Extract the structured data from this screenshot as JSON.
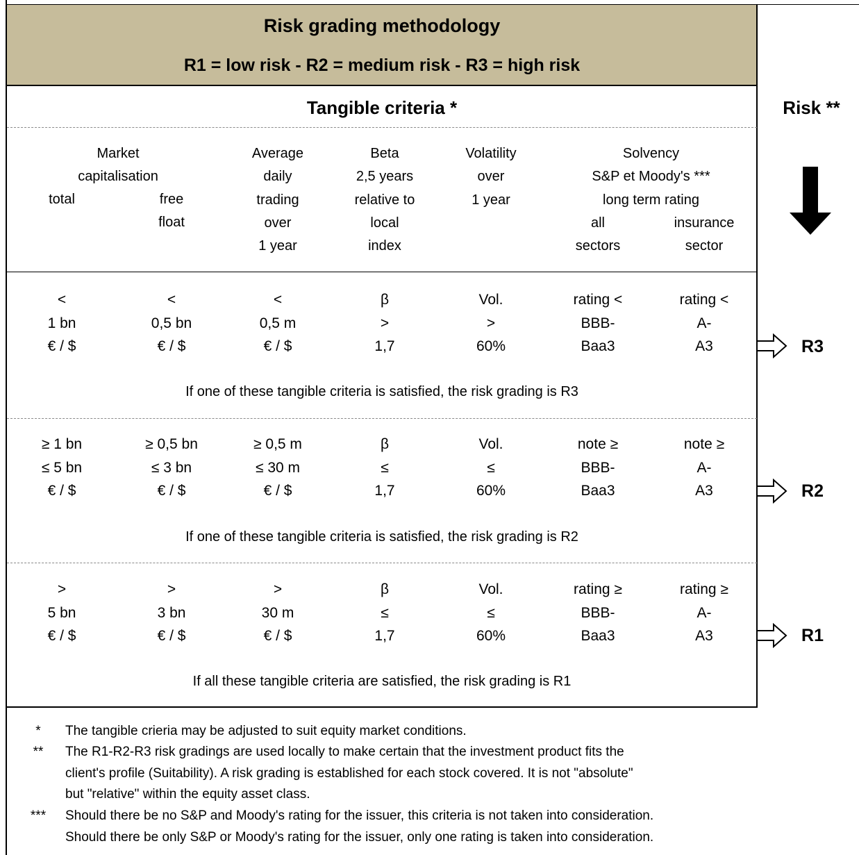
{
  "header": {
    "title": "Risk grading methodology",
    "subtitle": "R1 = low risk - R2 = medium risk - R3 = high risk"
  },
  "tangible_title": "Tangible criteria *",
  "risk_title": "Risk **",
  "columns": {
    "market_cap_group": [
      "Market",
      "capitalisation"
    ],
    "total": "total",
    "free_float": [
      "free",
      "float"
    ],
    "avg_trading": [
      "Average",
      "daily",
      "trading",
      "over",
      "1 year"
    ],
    "beta": [
      "Beta",
      "2,5 years",
      "relative to",
      "local",
      "index"
    ],
    "volatility": [
      "Volatility",
      "over",
      "1 year"
    ],
    "solvency_group": [
      "Solvency",
      "S&P et Moody's ***",
      "long term rating"
    ],
    "all_sectors": [
      "all",
      "sectors"
    ],
    "insurance_sector": [
      "insurance",
      "sector"
    ]
  },
  "rows": [
    {
      "cells": [
        [
          "<",
          "1 bn",
          "€ / $"
        ],
        [
          "<",
          "0,5 bn",
          "€ / $"
        ],
        [
          "<",
          "0,5 m",
          "€ / $"
        ],
        [
          "β",
          ">",
          "1,7"
        ],
        [
          "Vol.",
          ">",
          "60%"
        ],
        [
          "rating <",
          "BBB-",
          "Baa3"
        ],
        [
          "rating <",
          "A-",
          "A3"
        ]
      ],
      "note": "If one of these tangible criteria is satisfied, the risk grading is R3",
      "risk": "R3"
    },
    {
      "cells": [
        [
          "≥ 1 bn",
          "≤ 5 bn",
          "€ / $"
        ],
        [
          "≥ 0,5 bn",
          "≤ 3 bn",
          "€ / $"
        ],
        [
          "≥ 0,5 m",
          "≤ 30 m",
          "€ / $"
        ],
        [
          "β",
          "≤",
          "1,7"
        ],
        [
          "Vol.",
          "≤",
          "60%"
        ],
        [
          "note ≥",
          "BBB-",
          "Baa3"
        ],
        [
          "note ≥",
          "A-",
          "A3"
        ]
      ],
      "note": "If one of these tangible criteria is satisfied, the risk grading is R2",
      "risk": "R2"
    },
    {
      "cells": [
        [
          ">",
          "5 bn",
          "€ / $"
        ],
        [
          ">",
          "3 bn",
          "€ / $"
        ],
        [
          ">",
          "30 m",
          "€ / $"
        ],
        [
          "β",
          "≤",
          "1,7"
        ],
        [
          "Vol.",
          "≤",
          "60%"
        ],
        [
          "rating ≥",
          "BBB-",
          "Baa3"
        ],
        [
          "rating ≥",
          "A-",
          "A3"
        ]
      ],
      "note": "If all these tangible criteria are satisfied, the risk grading is R1",
      "risk": "R1"
    }
  ],
  "footnotes": [
    {
      "mark": "*",
      "lines": [
        "The tangible crieria may be adjusted to suit equity market conditions."
      ]
    },
    {
      "mark": "**",
      "lines": [
        "The R1-R2-R3 risk gradings are used locally to make certain that the investment product fits the",
        "client's profile (Suitability). A risk grading is established for each stock covered. It is not \"absolute\"",
        "but \"relative\" within the equity asset class."
      ]
    },
    {
      "mark": "***",
      "lines": [
        "Should there be no S&P and Moody's rating for the issuer, this criteria is not taken into consideration.",
        "Should there be only S&P or Moody's rating for the issuer, only one rating is taken into consideration."
      ]
    }
  ],
  "colors": {
    "header_bg": "#c6bc9b"
  },
  "icons": {
    "risk_direction": "down-arrow-icon",
    "row_pointer": "right-arrow-outline-icon"
  }
}
